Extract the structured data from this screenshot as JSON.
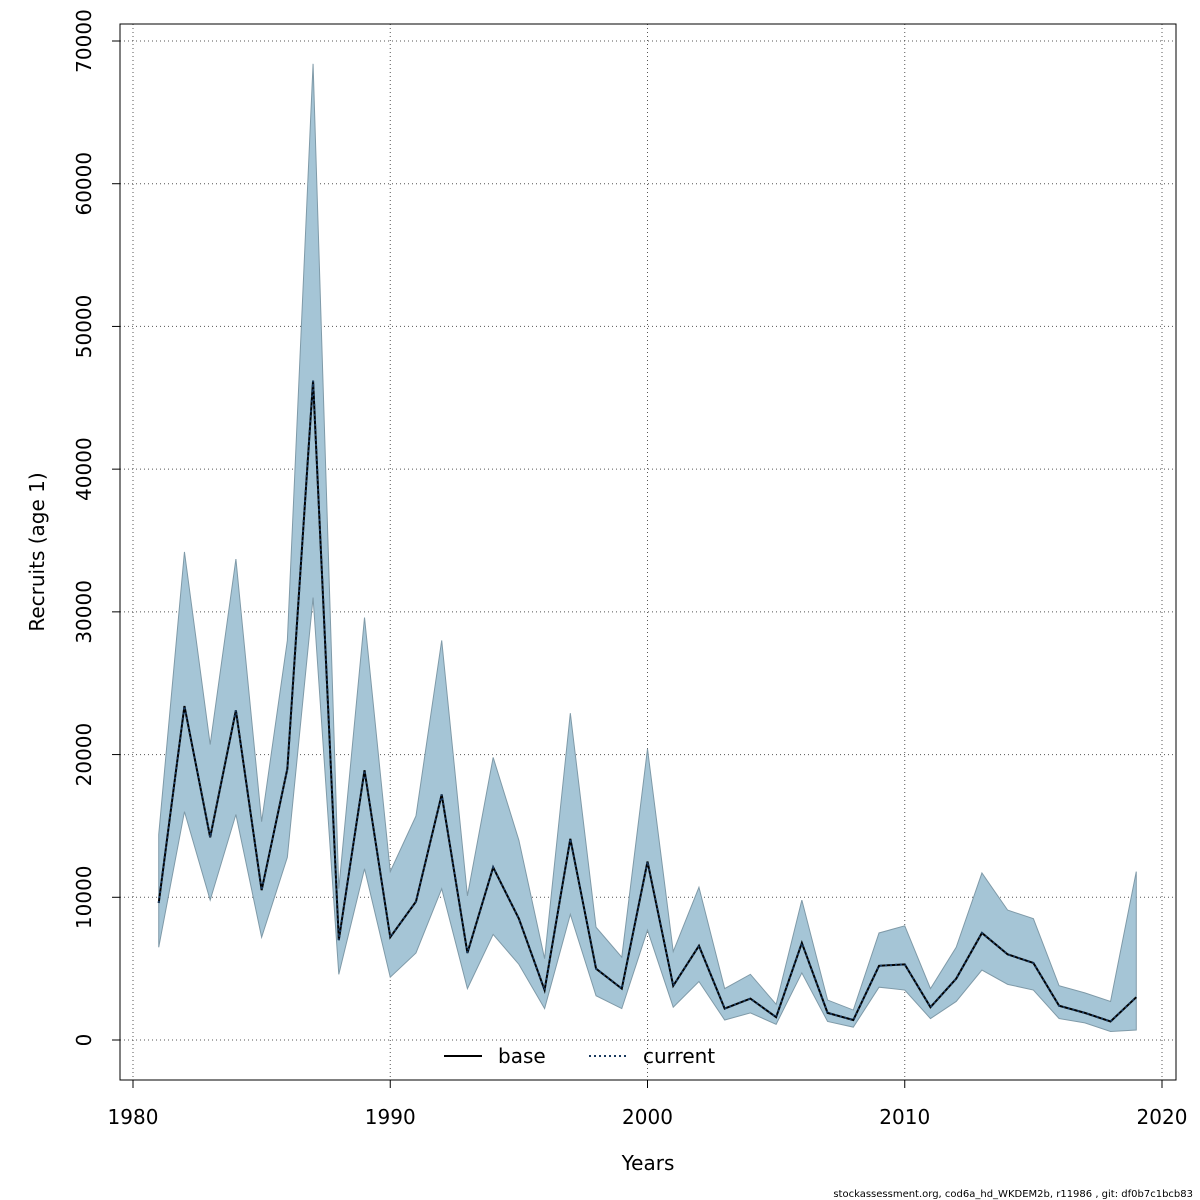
{
  "chart_data": {
    "type": "line",
    "xlabel": "Years",
    "ylabel": "Recruits (age 1)",
    "xlim": [
      1980,
      2020
    ],
    "ylim": [
      0,
      70000
    ],
    "x_ticks": [
      1980,
      1990,
      2000,
      2010,
      2020
    ],
    "y_ticks": [
      0,
      10000,
      20000,
      30000,
      40000,
      50000,
      60000,
      70000
    ],
    "grid": true,
    "legend_position": "bottom-center",
    "colors": {
      "band_fill": "#a5c5d6",
      "band_stroke": "#7f9aa8",
      "base_line": "#000000",
      "current_line": "#1a3a5e",
      "grid": "#555555"
    },
    "x": [
      1981,
      1982,
      1983,
      1984,
      1985,
      1986,
      1987,
      1988,
      1989,
      1990,
      1991,
      1992,
      1993,
      1994,
      1995,
      1996,
      1997,
      1998,
      1999,
      2000,
      2001,
      2002,
      2003,
      2004,
      2005,
      2006,
      2007,
      2008,
      2009,
      2010,
      2011,
      2012,
      2013,
      2014,
      2015,
      2016,
      2017,
      2018,
      2019
    ],
    "series": [
      {
        "name": "base",
        "style": "solid",
        "values": [
          9600,
          23400,
          14200,
          23100,
          10500,
          19000,
          46200,
          7000,
          18900,
          7200,
          9700,
          17200,
          6100,
          12100,
          8500,
          3500,
          14100,
          5000,
          3600,
          12500,
          3800,
          6600,
          2200,
          2900,
          1600,
          6800,
          1900,
          1400,
          5200,
          5300,
          2300,
          4300,
          7500,
          6000,
          5400,
          2400,
          1900,
          1300,
          3000
        ]
      },
      {
        "name": "current",
        "style": "dotted",
        "values": [
          9600,
          23400,
          14200,
          23100,
          10500,
          19000,
          46200,
          7000,
          18900,
          7200,
          9700,
          17200,
          6100,
          12100,
          8500,
          3500,
          14100,
          5000,
          3600,
          12500,
          3800,
          6600,
          2200,
          2900,
          1600,
          6800,
          1900,
          1400,
          5200,
          5300,
          2300,
          4300,
          7500,
          6000,
          5400,
          2400,
          1900,
          1300,
          3000
        ]
      }
    ],
    "confidence_band": {
      "lower": [
        6500,
        16000,
        9800,
        15800,
        7200,
        12800,
        31000,
        4600,
        12000,
        4400,
        6100,
        10600,
        3600,
        7400,
        5300,
        2200,
        8800,
        3100,
        2200,
        7700,
        2300,
        4100,
        1400,
        1900,
        1100,
        4700,
        1300,
        900,
        3700,
        3500,
        1500,
        2700,
        4900,
        3900,
        3500,
        1500,
        1200,
        600,
        700
      ],
      "upper": [
        14400,
        34200,
        20700,
        33700,
        15300,
        28000,
        68400,
        10600,
        29600,
        11800,
        15700,
        28000,
        10100,
        19800,
        14000,
        5700,
        22900,
        7900,
        5800,
        20400,
        6200,
        10700,
        3600,
        4600,
        2500,
        9800,
        2800,
        2100,
        7500,
        8000,
        3600,
        6500,
        11700,
        9100,
        8500,
        3800,
        3300,
        2700,
        11800
      ]
    }
  },
  "footer": {
    "credit": "stockassessment.org, cod6a_hd_WKDEM2b, r11986 , git: df0b7c1bcb83"
  }
}
